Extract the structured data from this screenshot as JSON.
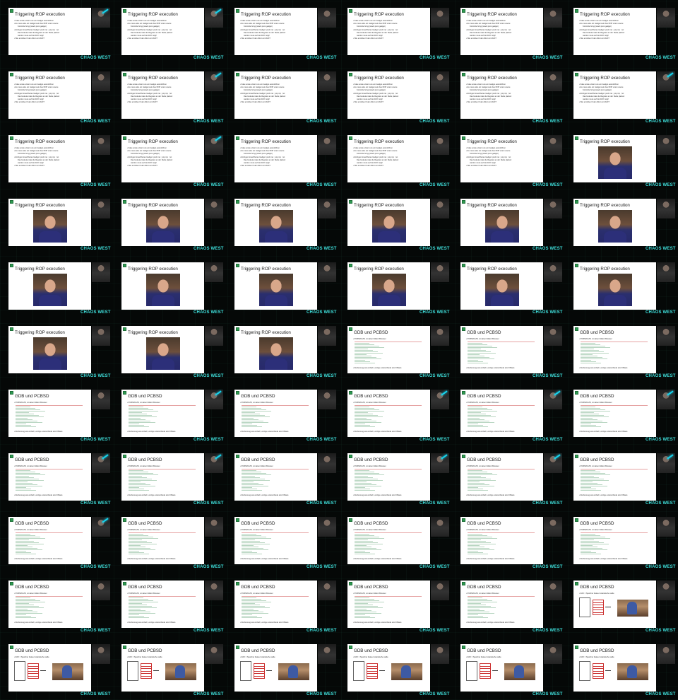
{
  "brand": "CHAOS WEST",
  "texts": {
    "rop_title": "Triggering ROP execution",
    "gdb_title": "GDB und PCBSD",
    "rop_bullets_a": [
      "• Fake sowie erkunt uns ein Gadget auszuführen",
      "• Es muss also ein Gadget sein das ROP unter unsere",
      "   Kontrolle bringt (stack pivot gadget)",
      "• Einziges brauchbares Gadget: push rax ; pop rsp ; ret",
      "   Das bedeutet das die Register an der Stelle plaziert",
      "   werden muss auf die RAX zeigt!",
      "• Wie ermittle ich den Wert von RAX?"
    ],
    "gdb_bullet": "• PCBSD9 VM, mit altem Midori Browser",
    "gdb_bottom": "• Rechenung war einfach, einzige unterschiede sind Offsets",
    "rax_bullet": "• RAX = Speicher bekeuz statistische stelle"
  },
  "grid": {
    "columns": 6,
    "rows": 11,
    "cells": [
      {
        "type": "rop_text",
        "fx": true
      },
      {
        "type": "rop_text",
        "fx": true
      },
      {
        "type": "rop_text",
        "fx": false
      },
      {
        "type": "rop_text",
        "fx": false
      },
      {
        "type": "rop_text",
        "fx": false
      },
      {
        "type": "rop_text",
        "fx": false
      },
      {
        "type": "rop_text",
        "fx": false
      },
      {
        "type": "rop_text",
        "fx": true
      },
      {
        "type": "rop_text",
        "fx": false
      },
      {
        "type": "rop_text",
        "fx": false
      },
      {
        "type": "rop_text",
        "fx": false
      },
      {
        "type": "rop_text",
        "fx": true
      },
      {
        "type": "rop_text",
        "fx": false
      },
      {
        "type": "rop_text",
        "fx": true
      },
      {
        "type": "rop_text",
        "fx": false
      },
      {
        "type": "rop_text",
        "fx": false
      },
      {
        "type": "rop_text",
        "fx": false
      },
      {
        "type": "rop_image",
        "fx": false
      },
      {
        "type": "rop_image",
        "fx": false
      },
      {
        "type": "rop_image",
        "fx": false
      },
      {
        "type": "rop_image",
        "fx": false
      },
      {
        "type": "rop_image",
        "fx": false
      },
      {
        "type": "rop_image",
        "fx": false
      },
      {
        "type": "rop_image",
        "fx": false
      },
      {
        "type": "rop_image",
        "fx": false
      },
      {
        "type": "rop_image",
        "fx": false
      },
      {
        "type": "rop_image",
        "fx": false
      },
      {
        "type": "rop_image",
        "fx": false
      },
      {
        "type": "rop_image",
        "fx": false
      },
      {
        "type": "rop_image",
        "fx": false
      },
      {
        "type": "rop_image",
        "fx": false
      },
      {
        "type": "rop_image",
        "fx": false
      },
      {
        "type": "rop_image",
        "fx": false
      },
      {
        "type": "gdb_code",
        "fx": false
      },
      {
        "type": "gdb_code",
        "fx": false
      },
      {
        "type": "gdb_code",
        "fx": false
      },
      {
        "type": "gdb_code",
        "fx": false
      },
      {
        "type": "gdb_code",
        "fx": true
      },
      {
        "type": "gdb_code",
        "fx": false
      },
      {
        "type": "gdb_code",
        "fx": true
      },
      {
        "type": "gdb_code",
        "fx": true
      },
      {
        "type": "gdb_code",
        "fx": true
      },
      {
        "type": "gdb_code",
        "fx": true
      },
      {
        "type": "gdb_code",
        "fx": true
      },
      {
        "type": "gdb_code",
        "fx": false
      },
      {
        "type": "gdb_code",
        "fx": true
      },
      {
        "type": "gdb_code",
        "fx": true
      },
      {
        "type": "gdb_code",
        "fx": true
      },
      {
        "type": "gdb_code",
        "fx": true
      },
      {
        "type": "gdb_code",
        "fx": false
      },
      {
        "type": "gdb_code",
        "fx": false
      },
      {
        "type": "gdb_code",
        "fx": false
      },
      {
        "type": "gdb_code",
        "fx": false
      },
      {
        "type": "gdb_code",
        "fx": false
      },
      {
        "type": "gdb_code",
        "fx": false
      },
      {
        "type": "gdb_code",
        "fx": false
      },
      {
        "type": "gdb_code",
        "fx": false
      },
      {
        "type": "gdb_code",
        "fx": false
      },
      {
        "type": "gdb_code",
        "fx": false
      },
      {
        "type": "gdb_rax",
        "fx": false
      },
      {
        "type": "gdb_rax",
        "fx": false
      },
      {
        "type": "gdb_rax",
        "fx": false
      },
      {
        "type": "gdb_rax",
        "fx": false
      },
      {
        "type": "gdb_rax",
        "fx": false
      },
      {
        "type": "gdb_rax",
        "fx": false
      },
      {
        "type": "gdb_rax",
        "fx": false
      }
    ]
  }
}
